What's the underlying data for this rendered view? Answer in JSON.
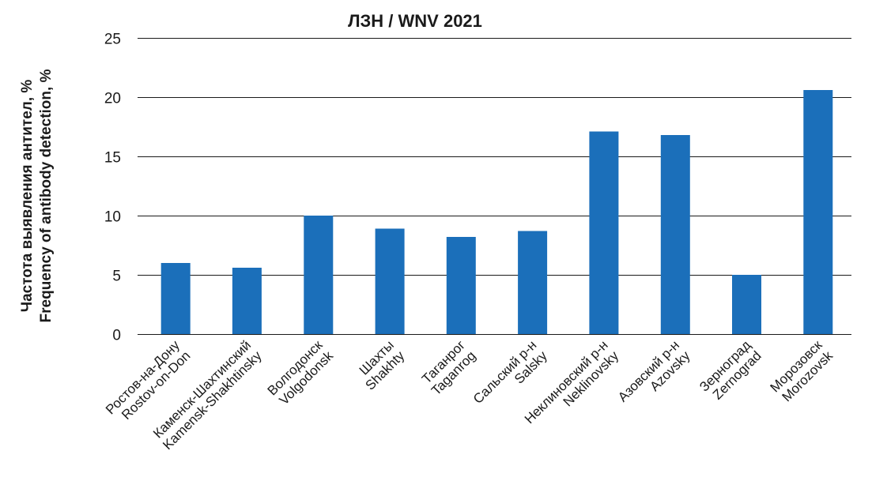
{
  "chart_data": {
    "type": "bar",
    "title": "ЛЗН / WNV 2021",
    "ylabel_line1": "Частота выявления антител, %",
    "ylabel_line2": "Frequency of antibody detection, %",
    "xlabel": "",
    "ylim": [
      0,
      25
    ],
    "yticks": [
      0,
      5,
      10,
      15,
      20,
      25
    ],
    "grid": true,
    "bar_color": "#1b6fba",
    "categories": [
      {
        "ru": "Ростов-на-Дону",
        "en": "Rostov-on-Don"
      },
      {
        "ru": "Каменск-Шахтинский",
        "en": "Kamensk-Shakhtinsky"
      },
      {
        "ru": "Волгодонск",
        "en": "Volgodonsk"
      },
      {
        "ru": "Шахты",
        "en": "Shakhty"
      },
      {
        "ru": "Таганрог",
        "en": "Taganrog"
      },
      {
        "ru": "Сальский р-н",
        "en": "Salsky"
      },
      {
        "ru": "Неклиновский р-н",
        "en": "Neklinovsky"
      },
      {
        "ru": "Азовский р-н",
        "en": "Azovsky"
      },
      {
        "ru": "Зерноград",
        "en": "Zernograd"
      },
      {
        "ru": "Морозовск",
        "en": "Morozovsk"
      }
    ],
    "values": [
      6.0,
      5.6,
      10.0,
      8.9,
      8.2,
      8.7,
      17.1,
      16.8,
      5.0,
      20.6
    ]
  }
}
